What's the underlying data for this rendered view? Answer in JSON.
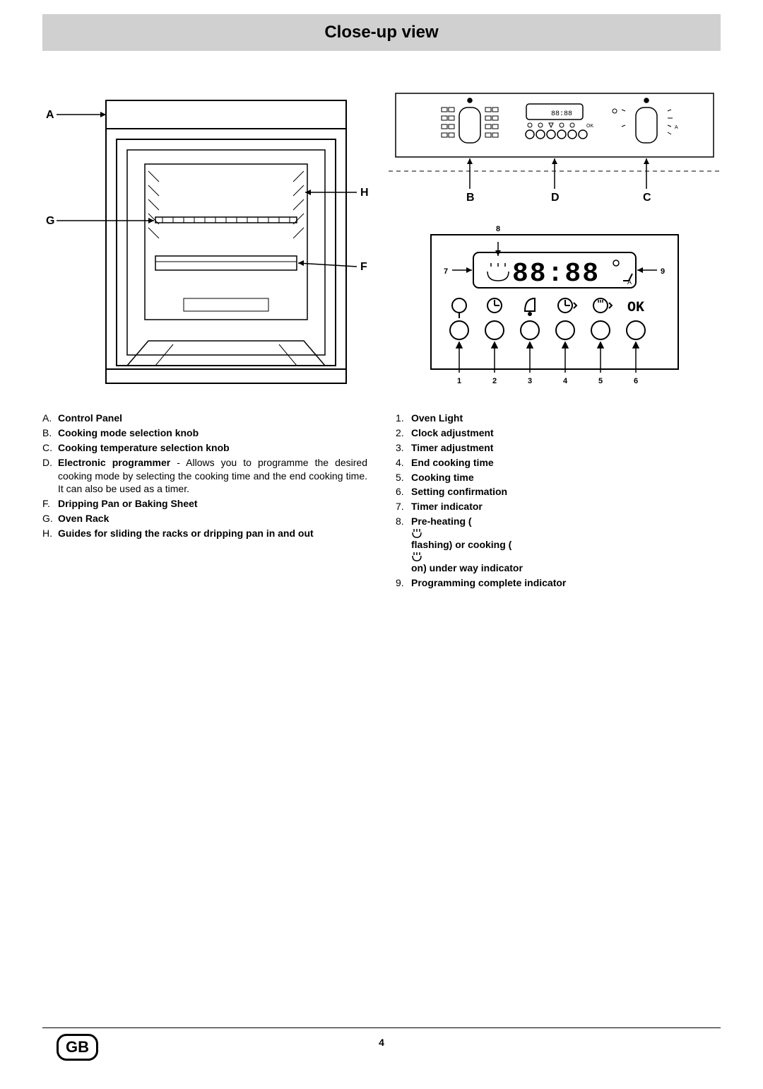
{
  "title": "Close-up view",
  "page_number": "4",
  "region_code": "GB",
  "oven_labels": {
    "A": "A",
    "G": "G",
    "H": "H",
    "F": "F",
    "B": "B",
    "D": "D",
    "C": "C"
  },
  "programmer_display": "88:88",
  "programmer_ok": "OK",
  "programmer_buttons": [
    "1",
    "2",
    "3",
    "4",
    "5",
    "6"
  ],
  "programmer_top_labels": {
    "7": "7",
    "8": "8",
    "9": "9"
  },
  "left_list": [
    {
      "lbl": "A.",
      "bold": true,
      "text": "Control Panel"
    },
    {
      "lbl": "B.",
      "bold": true,
      "text": "Cooking mode selection knob"
    },
    {
      "lbl": "C.",
      "bold": true,
      "text": "Cooking temperature selection knob"
    },
    {
      "lbl": "D.",
      "bold_prefix": "Electronic programmer",
      "text": " - Allows you to programme the desired cooking mode by selecting the cooking time and the end cooking time. It can also be used as a timer."
    },
    {
      "lbl": "F.",
      "bold": true,
      "text": "Dripping Pan or Baking Sheet"
    },
    {
      "lbl": "G.",
      "bold": true,
      "text": "Oven Rack"
    },
    {
      "lbl": "H.",
      "bold": true,
      "text": "Guides for sliding the racks or dripping pan in and out"
    }
  ],
  "right_list": [
    {
      "lbl": "1.",
      "bold": true,
      "text": "Oven Light"
    },
    {
      "lbl": "2.",
      "bold": true,
      "text": "Clock adjustment"
    },
    {
      "lbl": "3.",
      "bold": true,
      "text": "Timer adjustment"
    },
    {
      "lbl": "4.",
      "bold": true,
      "text": "End cooking time"
    },
    {
      "lbl": "5.",
      "bold": true,
      "text": "Cooking time"
    },
    {
      "lbl": "6.",
      "bold": true,
      "text": "Setting confirmation"
    },
    {
      "lbl": "7.",
      "bold": true,
      "text": "Timer indicator"
    },
    {
      "lbl": "8.",
      "bold_prefix": "Pre-heating (",
      "icon1": true,
      "mid": " flashing) or cooking (",
      "icon2": true,
      "suffix": " on) under way indicator"
    },
    {
      "lbl": "9.",
      "bold": true,
      "text": "Programming complete indicator"
    }
  ],
  "panel_display_text": "88:88",
  "panel_A": "A",
  "colors": {
    "title_bg": "#d0d0d0",
    "stroke": "#000000",
    "bg": "#ffffff"
  },
  "fonts": {
    "title_size": 24,
    "body_size": 14,
    "label_size": 13
  }
}
